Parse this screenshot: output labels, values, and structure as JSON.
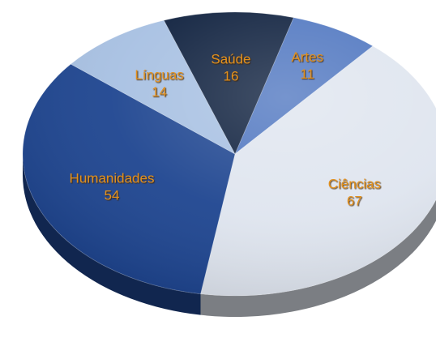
{
  "chart_data": {
    "type": "pie",
    "title": "",
    "style": "3d",
    "slices": [
      {
        "label": "Artes",
        "value": 11,
        "color": "#4f76c0"
      },
      {
        "label": "Ciências",
        "value": 67,
        "color": "#dfe5ef"
      },
      {
        "label": "Humanidades",
        "value": 54,
        "color": "#1e4590"
      },
      {
        "label": "Línguas",
        "value": 14,
        "color": "#a7c0e2"
      },
      {
        "label": "Saúde",
        "value": 16,
        "color": "#0d1f3d"
      }
    ],
    "label_color": "#e2901f"
  }
}
